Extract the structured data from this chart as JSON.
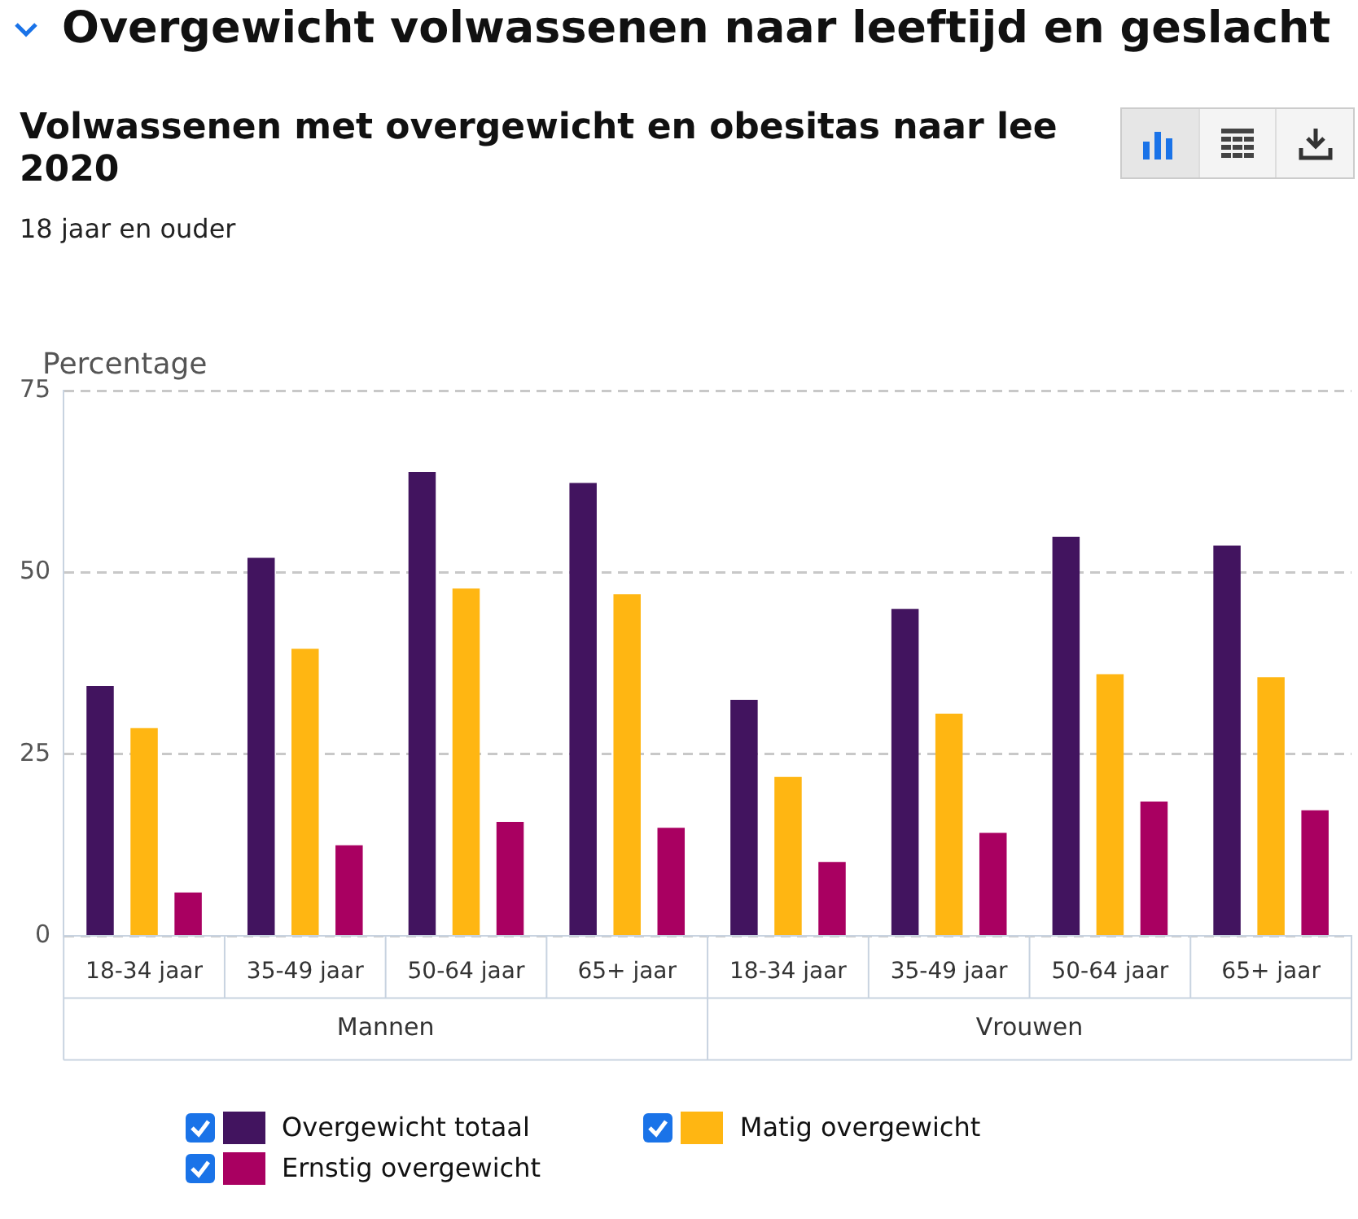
{
  "chart_data": {
    "type": "bar",
    "title": "Overgewicht volwassenen naar leeftijd en geslacht",
    "subtitle": "Volwassenen met overgewicht en obesitas naar lee 2020",
    "ylabel": "Percentage",
    "annotations": [
      "18 jaar en ouder",
      "Mannen",
      "Vrouwen"
    ],
    "categories": [
      "18-34 jaar",
      "35-49 jaar",
      "50-64 jaar",
      "65+ jaar",
      "18-34 jaar",
      "35-49 jaar",
      "50-64 jaar",
      "65+ jaar"
    ],
    "series": [
      {
        "name": "Overgewicht totaal",
        "color": "#42145f",
        "values": [
          34.4,
          52.0,
          63.8,
          62.3,
          32.5,
          45.0,
          54.9,
          53.7
        ]
      },
      {
        "name": "Matig overgewicht",
        "color": "#ffb612",
        "values": [
          28.6,
          39.5,
          47.8,
          47.0,
          21.9,
          30.6,
          36.0,
          35.6
        ]
      },
      {
        "name": "Ernstig overgewicht",
        "color": "#a90061",
        "values": [
          6.0,
          12.5,
          15.7,
          14.9,
          10.2,
          14.2,
          18.5,
          17.3
        ]
      }
    ],
    "ylim": [
      0,
      75
    ],
    "yticks": [
      0,
      25,
      50,
      75
    ],
    "grid": "y",
    "legend": "bottom"
  }
}
